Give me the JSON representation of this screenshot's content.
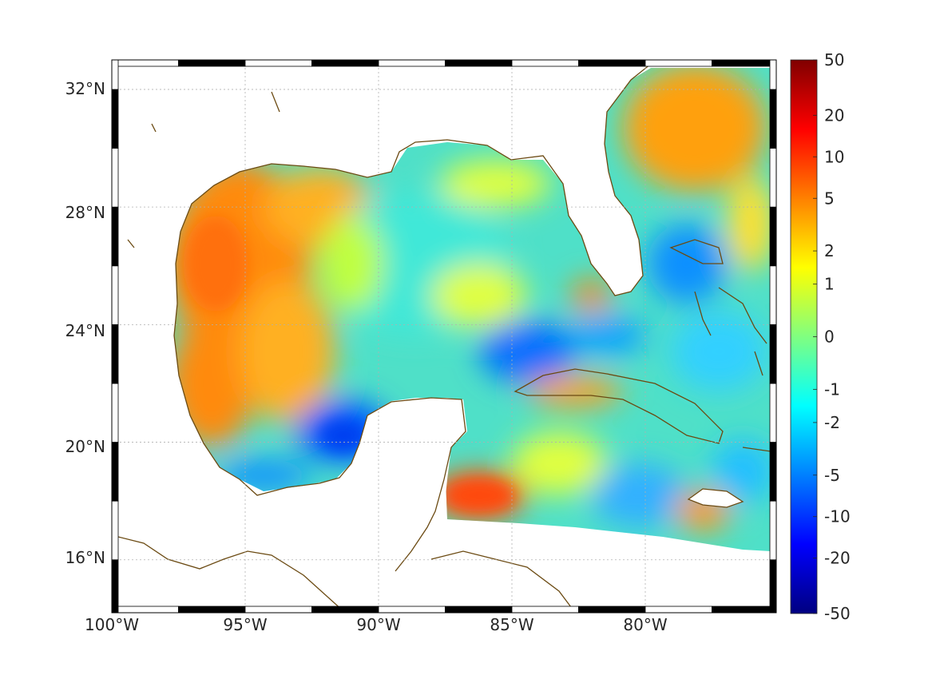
{
  "map": {
    "lon_range": [
      -100,
      -75
    ],
    "lat_range": [
      14.2,
      33
    ],
    "lon_ticks": [
      {
        "value": -100,
        "label": "100°W"
      },
      {
        "value": -95,
        "label": "95°W"
      },
      {
        "value": -90,
        "label": "90°W"
      },
      {
        "value": -85,
        "label": "85°W"
      },
      {
        "value": -80,
        "label": "80°W"
      }
    ],
    "lat_ticks": [
      {
        "value": 32,
        "label": "32°N"
      },
      {
        "value": 28,
        "label": "28°N"
      },
      {
        "value": 24,
        "label": "24°N"
      },
      {
        "value": 20,
        "label": "20°N"
      },
      {
        "value": 16,
        "label": "16°N"
      }
    ],
    "grid": "dotted",
    "coastline_color": "#6b4a12",
    "land_color": "#ffffff",
    "colormap": "jet"
  },
  "colorbar": {
    "ticks": [
      "50",
      "20",
      "10",
      "5",
      "2",
      "1",
      "0",
      "-1",
      "-2",
      "-5",
      "-10",
      "-20",
      "-50"
    ],
    "tick_fractions": [
      0.0,
      0.1,
      0.175,
      0.25,
      0.345,
      0.405,
      0.5,
      0.595,
      0.655,
      0.75,
      0.825,
      0.9,
      1.0
    ],
    "stops": [
      "#800000",
      "#ff0000",
      "#ff8000",
      "#ffff00",
      "#80ff80",
      "#00ffff",
      "#0080ff",
      "#0000ff",
      "#000080"
    ]
  }
}
